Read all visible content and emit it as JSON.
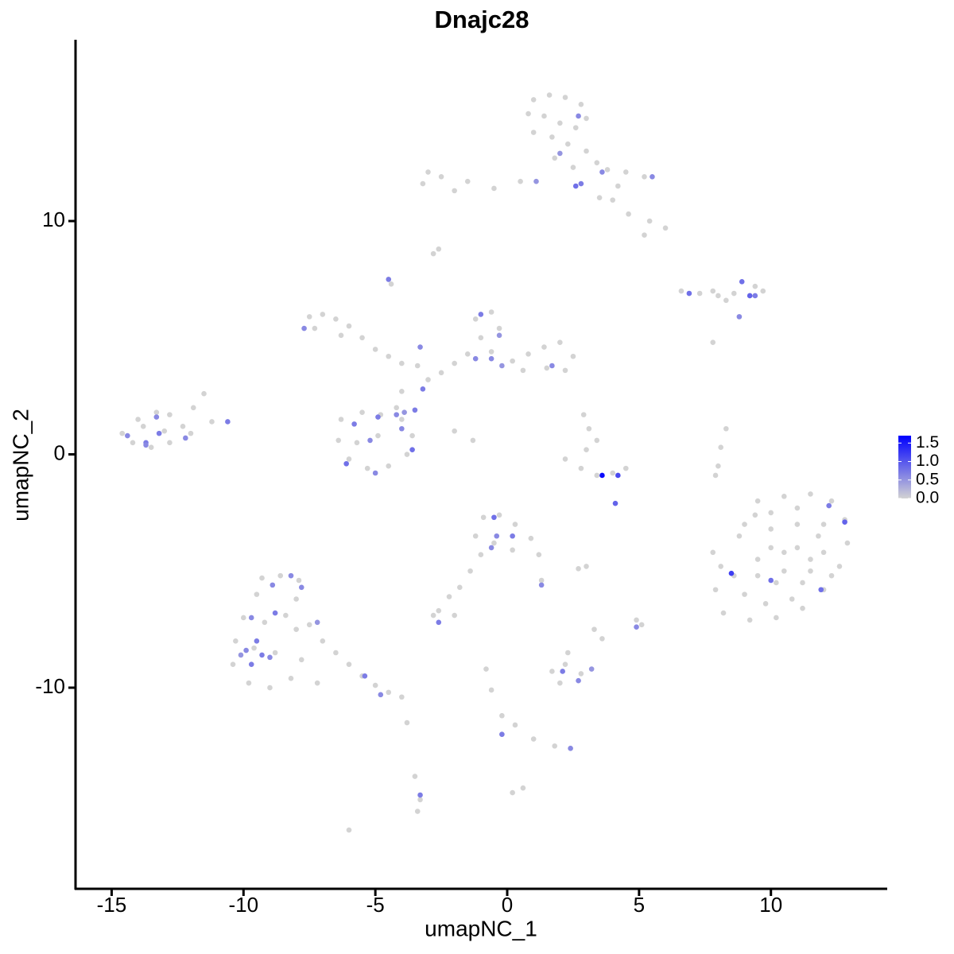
{
  "chart_data": {
    "type": "scatter",
    "title": "Dnajc28",
    "x_label": "umapNC_1",
    "y_label": "umapNC_2",
    "xlim": [
      -16.37,
      14.38
    ],
    "ylim": [
      -18.62,
      17.77
    ],
    "xticks": [
      -15,
      -10,
      -5,
      0,
      5,
      10
    ],
    "yticks": [
      -10,
      0,
      10
    ],
    "color_lim": [
      0,
      1.7
    ],
    "low_color": "#d3d3d3",
    "high_color": "#0000ff",
    "color_ticks": [
      {
        "value": 0,
        "label": "0.0"
      },
      0.5,
      {
        "value": 1,
        "label": "1.0"
      },
      1.5
    ],
    "x": [
      1.0,
      1.6,
      2.2,
      2.8,
      3.0,
      0.8,
      1.4,
      2.0,
      2.6,
      1.0,
      1.7,
      2.3,
      3.0,
      3.4,
      2.5,
      1.8,
      3.8,
      4.5,
      5.2,
      4.2,
      4.0,
      4.6,
      5.4,
      6.0,
      5.2,
      3.5,
      0.5,
      -0.5,
      -1.5,
      -2.5,
      -3.2,
      -3.0,
      -2.0,
      -2.8,
      -2.6,
      -4.5,
      -4.4,
      6.6,
      7.3,
      8.0,
      8.6,
      9.2,
      9.7,
      9.4,
      8.3,
      7.8,
      8.8,
      -7.5,
      -7.0,
      -6.5,
      -6.0,
      -5.5,
      -5.0,
      -7.3,
      -6.3,
      -4.5,
      -4.0,
      -3.4,
      -3.0,
      -2.5,
      -2.0,
      -1.5,
      -1.0,
      -1.2,
      -0.6,
      -0.3,
      -0.6,
      0.2,
      0.8,
      1.4,
      2.0,
      2.5,
      2.2,
      1.5,
      0.6,
      -4.0,
      -4.2,
      -6.3,
      -5.5,
      -4.8,
      -4.0,
      -3.6,
      -3.8,
      -4.5,
      -5.3,
      -6.0,
      -6.4,
      -5.7,
      -4.9,
      -2.0,
      -1.3,
      -14.6,
      -14.2,
      -13.8,
      -13.3,
      -12.8,
      -12.3,
      -11.9,
      -11.5,
      -13.5,
      -12.8,
      -13.0,
      -14.0,
      -12.0,
      -11.2,
      3.1,
      3.4,
      2.2,
      2.8,
      3.4,
      4.0,
      4.5,
      3.0,
      2.9,
      8.3,
      8.1,
      8.0,
      7.9,
      9.5,
      10.5,
      11.5,
      12.3,
      12.8,
      12.9,
      12.6,
      12.0,
      11.2,
      10.2,
      9.2,
      8.2,
      7.9,
      8.1,
      8.8,
      9.4,
      10.0,
      11.0,
      11.8,
      11.5,
      10.5,
      9.5,
      10.2,
      11.2,
      9.0,
      8.6,
      7.8,
      10.0,
      11.0,
      12.0,
      9.0,
      10.0,
      11.0,
      12.0,
      9.5,
      10.5,
      11.5,
      12.3,
      9.8,
      10.8,
      -9.3,
      -8.6,
      -7.9,
      -8.0,
      -9.5,
      -10.0,
      -9.2,
      -8.4,
      -7.5,
      -7.0,
      -6.5,
      -6.0,
      -5.5,
      -5.0,
      -4.5,
      -4.0,
      -10.3,
      -10.4,
      -9.8,
      -9.0,
      -8.2,
      -8.8,
      -9.6,
      -7.8,
      -7.2,
      -8.0,
      -0.9,
      -0.3,
      0.3,
      0.9,
      1.2,
      1.3,
      0.2,
      -0.5,
      -1.2,
      -1.0,
      -1.4,
      -1.8,
      -2.2,
      -2.6,
      -2.0,
      -2.8,
      2.7,
      3.0,
      1.7,
      2.2,
      2.8,
      2.3,
      2.0,
      -0.8,
      -0.6,
      -0.2,
      0.3,
      -0.2,
      1.0,
      1.8,
      2.4,
      4.9,
      5.1,
      3.3,
      3.6,
      -3.5,
      -3.3,
      -3.4,
      0.6,
      -6.0,
      -3.8,
      0.2,
      7.8,
      2.7,
      2.0,
      3.6,
      2.6,
      2.8,
      1.1,
      5.5,
      6.9,
      8.9,
      9.2,
      9.4,
      8.8,
      -4.5,
      -7.7,
      -1.0,
      -0.3,
      -1.2,
      -0.6,
      -0.2,
      1.7,
      -3.3,
      -3.2,
      -4.9,
      -4.2,
      -3.9,
      -3.5,
      -4.0,
      -5.8,
      -5.2,
      -3.6,
      -6.1,
      -5.0,
      -14.4,
      -13.3,
      -13.7,
      -13.7,
      -13.2,
      -12.2,
      -10.6,
      3.6,
      4.2,
      4.1,
      12.2,
      12.8,
      8.5,
      10.0,
      11.9,
      -0.5,
      -0.4,
      0.2,
      -0.6,
      1.3,
      -2.6,
      -8.9,
      -8.2,
      -7.8,
      -8.8,
      -7.2,
      -9.7,
      -9.5,
      -9.9,
      -9.3,
      -9.0,
      -10.1,
      -9.7,
      -5.4,
      -4.8,
      2.1,
      2.7,
      3.2,
      4.9,
      -0.2,
      2.4,
      -3.3
    ],
    "y": [
      15.2,
      15.4,
      15.3,
      15.0,
      14.4,
      14.6,
      14.5,
      14.2,
      14.0,
      13.8,
      13.6,
      13.3,
      13.0,
      12.5,
      12.3,
      12.7,
      12.2,
      12.1,
      11.9,
      11.5,
      10.9,
      10.3,
      10.0,
      9.7,
      9.4,
      11.0,
      11.7,
      11.4,
      11.7,
      11.9,
      11.6,
      12.1,
      11.3,
      8.6,
      8.8,
      7.5,
      7.3,
      7.0,
      6.9,
      6.8,
      6.9,
      6.8,
      7.0,
      7.2,
      6.6,
      7.0,
      5.9,
      5.9,
      6.0,
      5.8,
      5.5,
      5.0,
      4.5,
      5.4,
      5.1,
      4.2,
      3.9,
      3.8,
      3.2,
      3.5,
      3.9,
      4.3,
      5.0,
      5.8,
      6.1,
      5.4,
      4.4,
      4.0,
      4.3,
      4.6,
      4.8,
      4.2,
      3.6,
      3.7,
      3.6,
      2.7,
      2.0,
      1.5,
      1.8,
      1.7,
      1.5,
      0.8,
      0.0,
      -0.5,
      -0.6,
      -0.2,
      0.6,
      0.5,
      0.8,
      1.0,
      0.6,
      0.9,
      0.5,
      1.2,
      1.8,
      1.7,
      1.2,
      2.0,
      2.6,
      0.3,
      0.5,
      1.0,
      1.5,
      0.9,
      1.4,
      1.1,
      0.6,
      -0.2,
      -0.6,
      -0.9,
      -0.8,
      -0.6,
      0.2,
      1.7,
      1.1,
      0.3,
      -0.5,
      -0.9,
      -2.0,
      -1.8,
      -1.7,
      -2.0,
      -2.8,
      -3.8,
      -4.8,
      -5.8,
      -6.6,
      -7.0,
      -7.1,
      -6.8,
      -5.8,
      -4.8,
      -3.5,
      -2.6,
      -3.2,
      -3.0,
      -3.5,
      -4.5,
      -4.2,
      -4.5,
      -5.5,
      -5.5,
      -6.0,
      -5.2,
      -4.2,
      -2.5,
      -2.3,
      -3.0,
      -3.0,
      -4.0,
      -4.0,
      -4.2,
      -5.2,
      -5.0,
      -5.0,
      -5.2,
      -6.4,
      -6.2,
      -5.3,
      -5.2,
      -5.4,
      -6.2,
      -6.0,
      -7.0,
      -7.2,
      -6.9,
      -7.3,
      -8.0,
      -8.5,
      -9.0,
      -9.5,
      -9.9,
      -10.2,
      -10.4,
      -8.0,
      -9.0,
      -9.8,
      -10.0,
      -9.6,
      -8.5,
      -8.3,
      -8.8,
      -9.8,
      -7.5,
      -2.7,
      -2.6,
      -3.0,
      -3.6,
      -4.3,
      -5.4,
      -4.1,
      -3.8,
      -3.5,
      -4.3,
      -5.0,
      -5.7,
      -6.1,
      -6.7,
      -6.9,
      -6.9,
      -4.9,
      -4.8,
      -9.3,
      -9.0,
      -9.4,
      -8.5,
      -9.8,
      -9.2,
      -10.1,
      -11.2,
      -11.6,
      -12.0,
      -12.2,
      -12.5,
      -12.6,
      -7.1,
      -7.3,
      -7.5,
      -7.9,
      -13.8,
      -14.8,
      -15.3,
      -14.3,
      -16.1,
      -11.5,
      -14.5,
      4.8,
      14.5,
      12.9,
      12.1,
      11.5,
      11.6,
      11.7,
      11.9,
      6.9,
      7.4,
      6.8,
      6.8,
      5.9,
      7.5,
      5.4,
      6.0,
      5.1,
      4.1,
      4.1,
      3.8,
      3.8,
      4.6,
      2.8,
      1.6,
      1.7,
      1.8,
      1.9,
      1.1,
      1.3,
      0.6,
      0.2,
      -0.4,
      -0.8,
      0.8,
      1.6,
      0.5,
      0.4,
      0.9,
      0.7,
      1.4,
      -0.9,
      -0.9,
      -2.1,
      -2.2,
      -2.9,
      -5.1,
      -5.4,
      -5.8,
      -2.7,
      -3.5,
      -3.5,
      -4.0,
      -5.6,
      -7.2,
      -5.6,
      -5.2,
      -5.7,
      -6.8,
      -7.2,
      -7.0,
      -8.0,
      -8.4,
      -8.6,
      -8.7,
      -8.6,
      -9.0,
      -9.5,
      -10.3,
      -9.3,
      -9.7,
      -9.2,
      -7.4,
      -12.0,
      -12.6,
      -14.6
    ],
    "values": [
      0,
      0,
      0,
      0,
      0,
      0,
      0,
      0,
      0,
      0,
      0,
      0,
      0,
      0,
      0,
      0,
      0,
      0,
      0,
      0,
      0,
      0,
      0,
      0,
      0,
      0,
      0,
      0,
      0,
      0,
      0,
      0,
      0,
      0,
      0,
      0,
      0,
      0,
      0,
      0,
      0,
      0,
      0,
      0,
      0,
      0,
      0,
      0,
      0,
      0,
      0,
      0,
      0,
      0,
      0,
      0,
      0,
      0,
      0,
      0,
      0,
      0,
      0,
      0,
      0,
      0,
      0,
      0,
      0,
      0,
      0,
      0,
      0,
      0,
      0,
      0,
      0,
      0,
      0,
      0,
      0,
      0,
      0,
      0,
      0,
      0,
      0,
      0,
      0,
      0,
      0,
      0,
      0,
      0,
      0,
      0,
      0,
      0,
      0,
      0,
      0,
      0,
      0,
      0,
      0,
      0,
      0,
      0,
      0,
      0,
      0,
      0,
      0,
      0,
      0,
      0,
      0,
      0,
      0,
      0,
      0,
      0,
      0,
      0,
      0,
      0,
      0,
      0,
      0,
      0,
      0,
      0,
      0,
      0,
      0,
      0,
      0,
      0,
      0,
      0,
      0,
      0,
      0,
      0,
      0,
      0,
      0,
      0,
      0,
      0,
      0,
      0,
      0,
      0,
      0,
      0,
      0,
      0,
      0,
      0,
      0,
      0,
      0,
      0,
      0,
      0,
      0,
      0,
      0,
      0,
      0,
      0,
      0,
      0,
      0,
      0,
      0,
      0,
      0,
      0,
      0,
      0,
      0,
      0,
      0,
      0,
      0,
      0,
      0,
      0,
      0,
      0,
      0,
      0,
      0,
      0,
      0,
      0,
      0,
      0,
      0,
      0,
      0,
      0,
      0,
      0,
      0,
      0,
      0,
      0,
      0,
      0,
      0,
      0,
      0,
      0,
      0,
      0,
      0,
      0,
      0,
      0,
      0,
      0,
      0,
      0,
      0,
      0.6,
      0.5,
      0.6,
      0.8,
      0.7,
      0.5,
      0.6,
      0.8,
      0.8,
      0.9,
      0.7,
      0.6,
      0.7,
      0.6,
      0.7,
      0.5,
      0.6,
      0.6,
      0.5,
      0.6,
      0.6,
      0.7,
      0.7,
      0.6,
      0.5,
      0.7,
      0.6,
      0.7,
      0.6,
      0.8,
      0.8,
      0.6,
      0.6,
      0.6,
      0.7,
      0.6,
      0.7,
      0.6,
      0.7,
      1.6,
      1.1,
      0.9,
      0.7,
      0.9,
      1.2,
      0.8,
      0.8,
      0.8,
      0.6,
      0.7,
      0.6,
      0.6,
      0.7,
      0.6,
      0.6,
      0.6,
      0.7,
      0.5,
      0.6,
      0.7,
      0.6,
      0.7,
      0.6,
      0.5,
      0.7,
      0.7,
      0.6,
      0.7,
      0.6,
      0.5,
      0.6,
      0.7,
      0.6,
      0.7
    ]
  }
}
